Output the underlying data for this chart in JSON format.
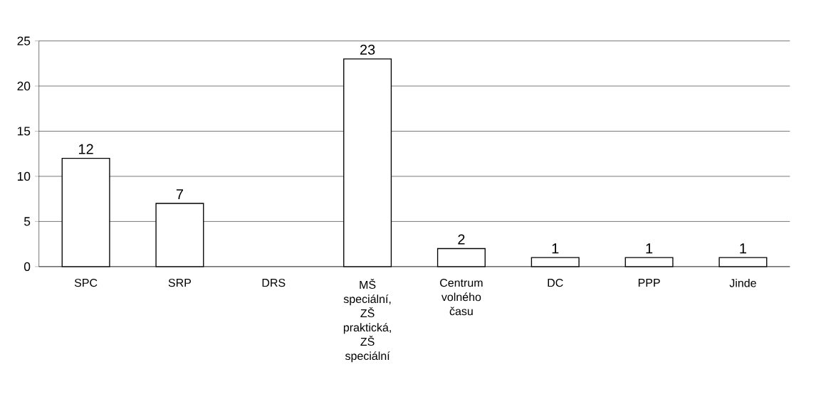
{
  "chart_data": {
    "type": "bar",
    "categories": [
      "SPC",
      "SRP",
      "DRS",
      "MŠ speciální, ZŠ praktická, ZŠ speciální",
      "Centrum volného času",
      "DC",
      "PPP",
      "Jinde"
    ],
    "values": [
      12,
      7,
      0,
      23,
      2,
      1,
      1,
      1
    ],
    "value_labels": [
      "12",
      "7",
      null,
      "23",
      "2",
      "1",
      "1",
      "1"
    ],
    "color": "#ffffff",
    "ylim": [
      0,
      25
    ],
    "yticks": [
      0,
      5,
      10,
      15,
      20,
      25
    ],
    "grid": "y"
  }
}
